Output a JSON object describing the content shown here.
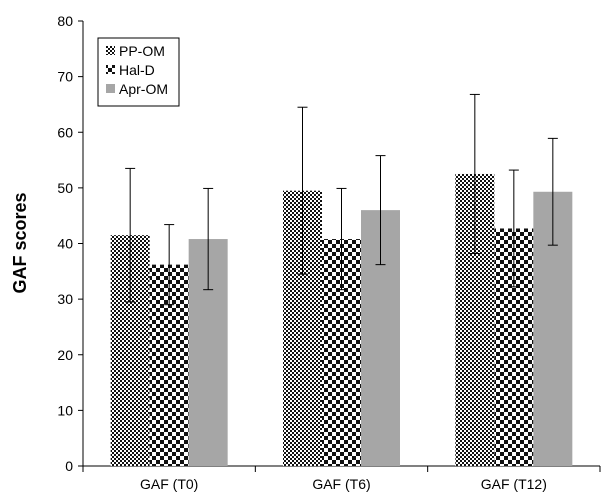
{
  "chart_data": {
    "type": "bar",
    "ylabel": "GAF scores",
    "xlabel": "",
    "ylim": [
      0,
      80
    ],
    "yticks": [
      0,
      10,
      20,
      30,
      40,
      50,
      60,
      70,
      80
    ],
    "categories": [
      "GAF (T0)",
      "GAF (T6)",
      "GAF (T12)"
    ],
    "series": [
      {
        "name": "PP-OM",
        "values": [
          41.5,
          49.5,
          52.5
        ],
        "error": [
          12,
          15,
          14.3
        ],
        "pattern": "dense-checker",
        "color": "#111111"
      },
      {
        "name": "Hal-D",
        "values": [
          36.2,
          40.8,
          42.7
        ],
        "error": [
          7.2,
          9.1,
          10.5
        ],
        "pattern": "coarse-checker",
        "color": "#111111"
      },
      {
        "name": "Apr-OM",
        "values": [
          40.8,
          46.0,
          49.3
        ],
        "error": [
          9.1,
          9.8,
          9.6
        ],
        "pattern": "solid",
        "color": "#a6a6a6"
      }
    ],
    "legend_position": "top-left",
    "grid": false
  }
}
